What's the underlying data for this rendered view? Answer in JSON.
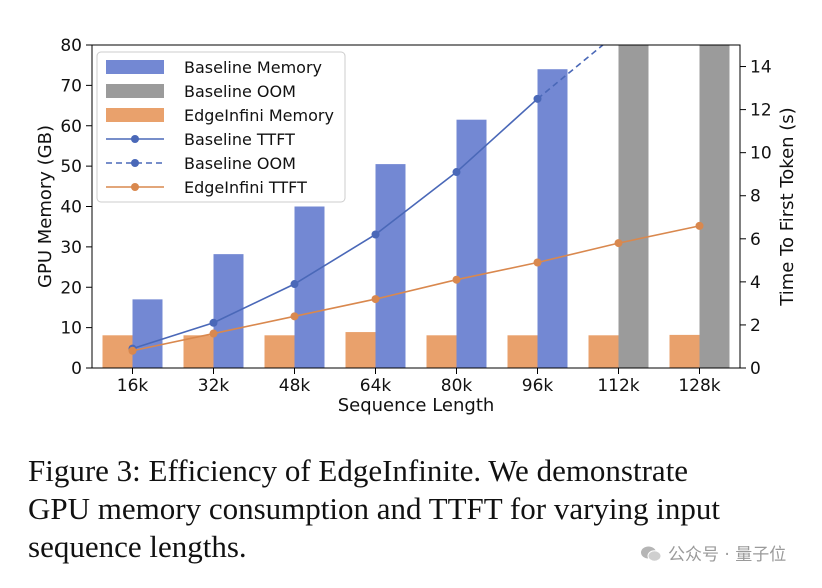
{
  "chart_data": {
    "type": "bar+line",
    "categories": [
      "16k",
      "32k",
      "48k",
      "64k",
      "80k",
      "96k",
      "112k",
      "128k"
    ],
    "xlabel": "Sequence Length",
    "ylabel": "GPU Memory (GB)",
    "y2label": "Time To First Token (s)",
    "ylim": [
      0,
      80
    ],
    "y2lim": [
      0,
      15
    ],
    "yticks": [
      0,
      10,
      20,
      30,
      40,
      50,
      60,
      70,
      80
    ],
    "y2ticks": [
      0,
      2,
      4,
      6,
      8,
      10,
      12,
      14
    ],
    "bars": [
      {
        "name": "Baseline Memory",
        "color": "#7388d3",
        "values": [
          17,
          28.2,
          40,
          50.5,
          61.5,
          74,
          null,
          null
        ]
      },
      {
        "name": "Baseline OOM",
        "color": "#9b9b9b",
        "values": [
          null,
          null,
          null,
          null,
          null,
          null,
          80,
          80
        ]
      },
      {
        "name": "EdgeInfini Memory",
        "color": "#e9a16c",
        "values": [
          8.1,
          8.1,
          8.1,
          8.9,
          8.1,
          8.1,
          8.1,
          8.2
        ]
      }
    ],
    "lines": [
      {
        "name": "Baseline TTFT",
        "color": "#4a68b8",
        "style": "solid",
        "axis": "y2",
        "values": [
          0.9,
          2.1,
          3.9,
          6.2,
          9.1,
          12.5,
          null,
          null
        ]
      },
      {
        "name": "Baseline OOM",
        "color": "#4a68b8",
        "style": "dashed",
        "axis": "y2",
        "values": [
          null,
          null,
          null,
          null,
          null,
          12.5,
          15.6,
          null
        ]
      },
      {
        "name": "EdgeInfini TTFT",
        "color": "#d9884e",
        "style": "solid",
        "axis": "y2",
        "values": [
          0.8,
          1.6,
          2.4,
          3.2,
          4.1,
          4.9,
          5.8,
          6.6
        ]
      }
    ],
    "legend_position": "upper-left"
  },
  "caption": {
    "lines": [
      "Figure 3: Efficiency of EdgeInfinite. We demonstrate",
      "GPU memory consumption and TTFT for varying input",
      "sequence lengths."
    ]
  },
  "watermark": {
    "text": "公众号 · 量子位",
    "icon": "wechat-icon"
  }
}
